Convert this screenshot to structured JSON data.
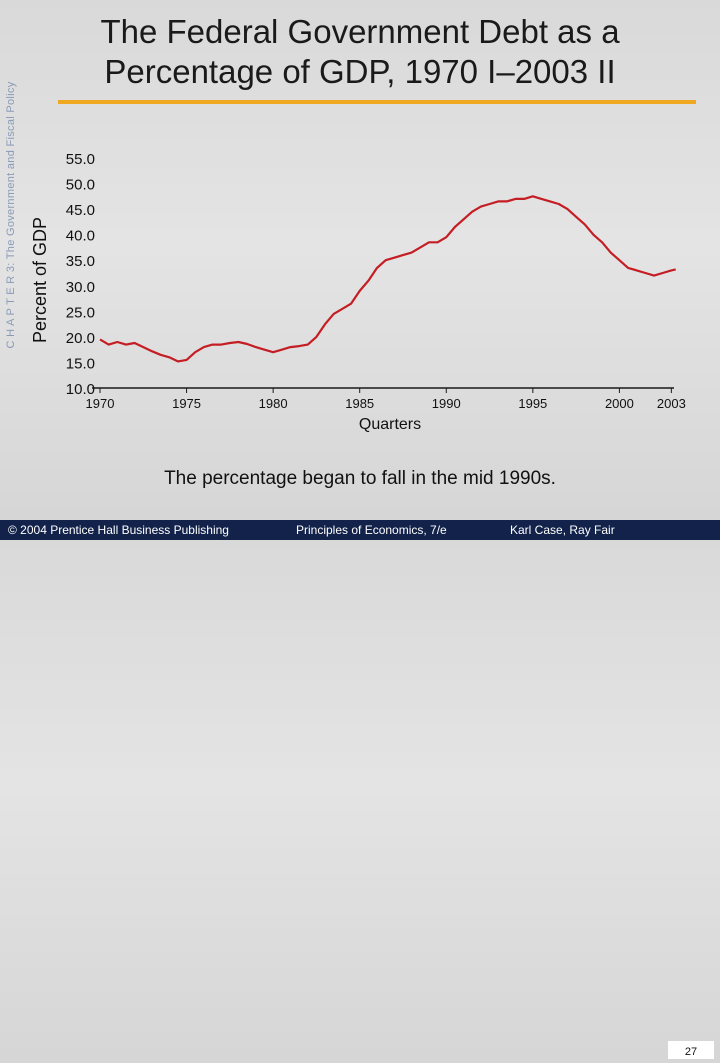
{
  "slide": {
    "side_label": "C H A P T E R 3: The Government and Fiscal Policy",
    "title_line1": "The Federal Government Debt as a",
    "title_line2": "Percentage of GDP, 1970 I–2003 II",
    "caption": "The percentage began to fall in the mid 1990s.",
    "footer": {
      "copyright": "© 2004 Prentice Hall Business Publishing",
      "book": "Principles of Economics, 7/e",
      "authors": "Karl Case, Ray Fair",
      "page": "27"
    },
    "colors": {
      "accent_rule": "#f0a820",
      "footer_bg": "#12224a",
      "line": "#c41e24"
    }
  },
  "chart_data": {
    "type": "line",
    "title": "The Federal Government Debt as a Percentage of GDP, 1970 I–2003 II",
    "xlabel": "Quarters",
    "ylabel": "Percent of GDP",
    "xlim": [
      1970,
      2003.5
    ],
    "ylim": [
      10,
      55
    ],
    "yticks": [
      "10.0",
      "15.0",
      "20.0",
      "25.0",
      "30.0",
      "35.0",
      "40.0",
      "45.0",
      "50.0",
      "55.0"
    ],
    "xticks": [
      {
        "label": "1970",
        "value": 1970
      },
      {
        "label": "1975",
        "value": 1975
      },
      {
        "label": "1980",
        "value": 1980
      },
      {
        "label": "1985",
        "value": 1985
      },
      {
        "label": "1990",
        "value": 1990
      },
      {
        "label": "1995",
        "value": 1995
      },
      {
        "label": "2000",
        "value": 2000
      },
      {
        "label": "2003",
        "value": 2003
      }
    ],
    "series": [
      {
        "name": "Federal debt as % of GDP",
        "x": [
          1970,
          1970.5,
          1971,
          1971.5,
          1972,
          1972.5,
          1973,
          1973.5,
          1974,
          1974.5,
          1975,
          1975.5,
          1976,
          1976.5,
          1977,
          1977.5,
          1978,
          1978.5,
          1979,
          1979.5,
          1980,
          1980.5,
          1981,
          1981.5,
          1982,
          1982.5,
          1983,
          1983.5,
          1984,
          1984.5,
          1985,
          1985.5,
          1986,
          1986.5,
          1987,
          1987.5,
          1988,
          1988.5,
          1989,
          1989.5,
          1990,
          1990.5,
          1991,
          1991.5,
          1992,
          1992.5,
          1993,
          1993.5,
          1994,
          1994.5,
          1995,
          1995.5,
          1996,
          1996.5,
          1997,
          1997.5,
          1998,
          1998.5,
          1999,
          1999.5,
          2000,
          2000.5,
          2001,
          2001.5,
          2002,
          2002.5,
          2003,
          2003.25
        ],
        "values": [
          19.5,
          18.5,
          19.0,
          18.5,
          18.8,
          18.0,
          17.2,
          16.5,
          16.0,
          15.2,
          15.5,
          17.0,
          18.0,
          18.5,
          18.5,
          18.8,
          19.0,
          18.6,
          18.0,
          17.5,
          17.0,
          17.5,
          18.0,
          18.2,
          18.5,
          20.0,
          22.5,
          24.5,
          25.5,
          26.5,
          29.0,
          31.0,
          33.5,
          35.0,
          35.5,
          36.0,
          36.5,
          37.5,
          38.5,
          38.5,
          39.5,
          41.5,
          43.0,
          44.5,
          45.5,
          46.0,
          46.5,
          46.5,
          47.0,
          47.0,
          47.5,
          47.0,
          46.5,
          46.0,
          45.0,
          43.5,
          42.0,
          40.0,
          38.5,
          36.5,
          35.0,
          33.5,
          33.0,
          32.5,
          32.0,
          32.5,
          33.0,
          33.2
        ]
      }
    ]
  }
}
